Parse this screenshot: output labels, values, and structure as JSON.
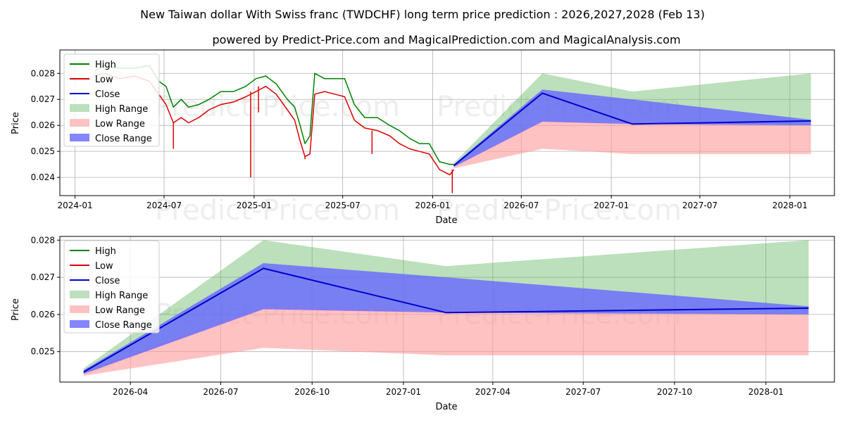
{
  "title": "New Taiwan dollar With Swiss franc (TWDCHF) long term price prediction : 2026,2027,2028 (Feb 13)",
  "subtitle": "powered by Predict-Price.com and MagicalPrediction.com and MagicalAnalysis.com",
  "watermark": "Predict-Price.com",
  "colors": {
    "high": "#008000",
    "low": "#dd0000",
    "close": "#0000cc",
    "high_range": "#6ab86a",
    "low_range": "#ff9999",
    "close_range": "#6666ff",
    "grid": "#b0b0b0"
  },
  "chart_data": [
    {
      "type": "line",
      "panel": "history-and-forecast",
      "xlabel": "Date",
      "ylabel": "Price",
      "xlim": [
        "2023-12-01",
        "2028-04-01"
      ],
      "ylim": [
        0.0233,
        0.0289
      ],
      "xticks": [
        "2024-01",
        "2024-07",
        "2025-01",
        "2025-07",
        "2026-01",
        "2026-07",
        "2027-01",
        "2027-07",
        "2028-01"
      ],
      "yticks": [
        "0.024",
        "0.025",
        "0.026",
        "0.027",
        "0.028"
      ],
      "legend": [
        "High",
        "Low",
        "Close",
        "High Range",
        "Low Range",
        "Close Range"
      ],
      "legend_position": "upper-left",
      "history": {
        "dates": [
          "2024-02-10",
          "2024-03-01",
          "2024-04-01",
          "2024-05-01",
          "2024-06-01",
          "2024-06-20",
          "2024-07-05",
          "2024-07-20",
          "2024-08-05",
          "2024-08-20",
          "2024-09-10",
          "2024-10-01",
          "2024-10-25",
          "2024-11-20",
          "2024-12-15",
          "2025-01-05",
          "2025-01-25",
          "2025-02-15",
          "2025-03-10",
          "2025-03-25",
          "2025-04-05",
          "2025-04-15",
          "2025-04-25",
          "2025-05-05",
          "2025-05-25",
          "2025-06-15",
          "2025-07-05",
          "2025-07-25",
          "2025-08-15",
          "2025-09-10",
          "2025-10-05",
          "2025-10-25",
          "2025-11-15",
          "2025-12-05",
          "2025-12-25",
          "2026-01-15",
          "2026-02-05",
          "2026-02-13"
        ],
        "high": [
          0.0281,
          0.0283,
          0.0282,
          0.0282,
          0.0283,
          0.0277,
          0.0275,
          0.0267,
          0.027,
          0.0267,
          0.0268,
          0.027,
          0.0273,
          0.0273,
          0.0275,
          0.0278,
          0.0279,
          0.0276,
          0.027,
          0.0267,
          0.026,
          0.0253,
          0.0256,
          0.028,
          0.0278,
          0.0278,
          0.0278,
          0.0268,
          0.0263,
          0.0263,
          0.026,
          0.0258,
          0.0255,
          0.0253,
          0.0253,
          0.0246,
          0.0245,
          0.0245
        ],
        "low": [
          0.0279,
          0.028,
          0.0278,
          0.0279,
          0.0277,
          0.0272,
          0.0268,
          0.0261,
          0.0263,
          0.0261,
          0.0263,
          0.0266,
          0.0268,
          0.0269,
          0.0271,
          0.0273,
          0.0275,
          0.0272,
          0.0266,
          0.0262,
          0.0254,
          0.0248,
          0.0249,
          0.0272,
          0.0273,
          0.0272,
          0.0271,
          0.0262,
          0.0259,
          0.0258,
          0.0256,
          0.0253,
          0.0251,
          0.025,
          0.0249,
          0.0243,
          0.0241,
          0.0243
        ]
      },
      "spikes": [
        {
          "date": "2024-07-20",
          "value": 0.0251
        },
        {
          "date": "2024-12-25",
          "value": 0.024
        },
        {
          "date": "2025-01-10",
          "value": 0.0265
        },
        {
          "date": "2025-04-15",
          "value": 0.0247
        },
        {
          "date": "2025-08-30",
          "value": 0.0249
        },
        {
          "date": "2026-02-10",
          "value": 0.0234
        }
      ],
      "forecast": {
        "dates": [
          "2026-02-13",
          "2026-08-13",
          "2027-02-13",
          "2028-02-13"
        ],
        "close": [
          0.02445,
          0.02724,
          0.02605,
          0.02617
        ],
        "high_range_upper": [
          0.02455,
          0.028,
          0.0273,
          0.028
        ],
        "high_range_lower": [
          0.0244,
          0.0262,
          0.0261,
          0.026
        ],
        "close_range_upper": [
          0.0245,
          0.02738,
          0.027,
          0.02622
        ],
        "close_range_lower": [
          0.0244,
          0.02614,
          0.02605,
          0.026
        ],
        "low_range_upper": [
          0.02445,
          0.0262,
          0.0261,
          0.026
        ],
        "low_range_lower": [
          0.02435,
          0.0251,
          0.0249,
          0.0249
        ]
      }
    },
    {
      "type": "line",
      "panel": "forecast-detail",
      "xlabel": "Date",
      "ylabel": "Price",
      "xlim": [
        "2026-01-20",
        "2028-03-10"
      ],
      "ylim": [
        0.02418,
        0.0281
      ],
      "xticks": [
        "2026-04",
        "2026-07",
        "2026-10",
        "2027-01",
        "2027-04",
        "2027-07",
        "2027-10",
        "2028-01"
      ],
      "yticks": [
        "0.025",
        "0.026",
        "0.027",
        "0.028"
      ],
      "legend": [
        "High",
        "Low",
        "Close",
        "High Range",
        "Low Range",
        "Close Range"
      ],
      "legend_position": "upper-left"
    }
  ]
}
